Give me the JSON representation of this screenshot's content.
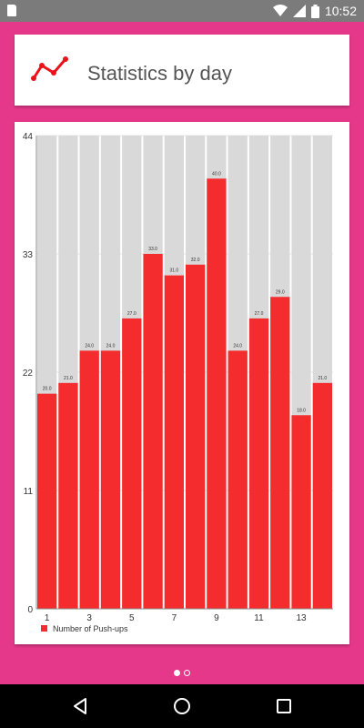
{
  "status_bar": {
    "time": "10:52"
  },
  "header": {
    "title": "Statistics by day",
    "icon": "line-chart-icon"
  },
  "colors": {
    "accent": "#e6388a",
    "bar": "#f42c2e",
    "bar_bg": "#d9d9d9"
  },
  "chart_data": {
    "type": "bar",
    "title": "",
    "xlabel": "",
    "ylabel": "",
    "categories": [
      1,
      2,
      3,
      4,
      5,
      6,
      7,
      8,
      9,
      10,
      11,
      12,
      13,
      14
    ],
    "series": [
      {
        "name": "Number of Push-ups",
        "values": [
          20,
          21,
          24,
          24,
          27,
          33,
          31,
          32,
          40,
          24,
          27,
          29,
          18,
          21
        ],
        "value_labels": [
          "20.0",
          "21.0",
          "24.0",
          "24.0",
          "27.0",
          "33.0",
          "31.0",
          "32.0",
          "40.0",
          "24.0",
          "27.0",
          "29.0",
          "18.0",
          "21.0"
        ]
      }
    ],
    "x_tick_labels": [
      "1",
      "3",
      "5",
      "7",
      "9",
      "11",
      "13"
    ],
    "x_tick_values": [
      1,
      3,
      5,
      7,
      9,
      11,
      13
    ],
    "y_ticks": [
      "0",
      "11",
      "22",
      "33",
      "44"
    ],
    "y_tick_values": [
      0,
      11,
      22,
      33,
      44
    ],
    "ylim": [
      0,
      44
    ],
    "grid": true,
    "legend": "bottom-left"
  },
  "pager": {
    "pages": 2,
    "active": 0
  }
}
